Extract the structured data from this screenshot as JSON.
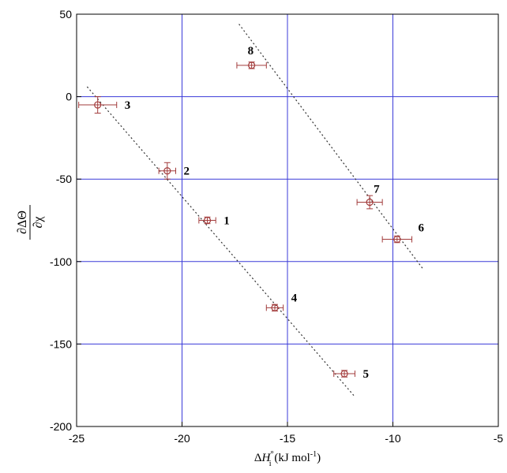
{
  "chart_data": {
    "type": "scatter",
    "xlabel": {
      "prefix": "Δ",
      "symbol": "H",
      "superscript": "°",
      "subscript": "i",
      "units": " (kJ mol",
      "units_exp": "-1",
      "units_close": ")"
    },
    "ylabel": {
      "numerator": "∂ΔΘ",
      "denominator": "∂χ"
    },
    "xlim": [
      -25,
      -5
    ],
    "ylim": [
      -200,
      50
    ],
    "xticks": [
      -25,
      -20,
      -15,
      -10,
      -5
    ],
    "yticks": [
      50,
      0,
      -50,
      -100,
      -150,
      -200
    ],
    "grid": true,
    "grid_color": "#3a3ad8",
    "marker_color": "#a23b3b",
    "points": [
      {
        "label": "1",
        "x": -18.8,
        "y": -75,
        "xerr": 0.4,
        "yerr": 2
      },
      {
        "label": "2",
        "x": -20.7,
        "y": -45,
        "xerr": 0.4,
        "yerr": 5
      },
      {
        "label": "3",
        "x": -24.0,
        "y": -5,
        "xerr": 0.9,
        "yerr": 5
      },
      {
        "label": "4",
        "x": -15.6,
        "y": -128,
        "xerr": 0.4,
        "yerr": 2
      },
      {
        "label": "5",
        "x": -12.3,
        "y": -168,
        "xerr": 0.5,
        "yerr": 2
      },
      {
        "label": "6",
        "x": -9.8,
        "y": -86.5,
        "xerr": 0.7,
        "yerr": 2
      },
      {
        "label": "7",
        "x": -11.1,
        "y": -64,
        "xerr": 0.6,
        "yerr": 4
      },
      {
        "label": "8",
        "x": -16.7,
        "y": 19,
        "xerr": 0.7,
        "yerr": 2
      }
    ],
    "fit_lines": [
      {
        "x1": -24.5,
        "y1": 6,
        "x2": -11.8,
        "y2": -182
      },
      {
        "x1": -17.3,
        "y1": 44,
        "x2": -8.6,
        "y2": -104
      }
    ]
  }
}
